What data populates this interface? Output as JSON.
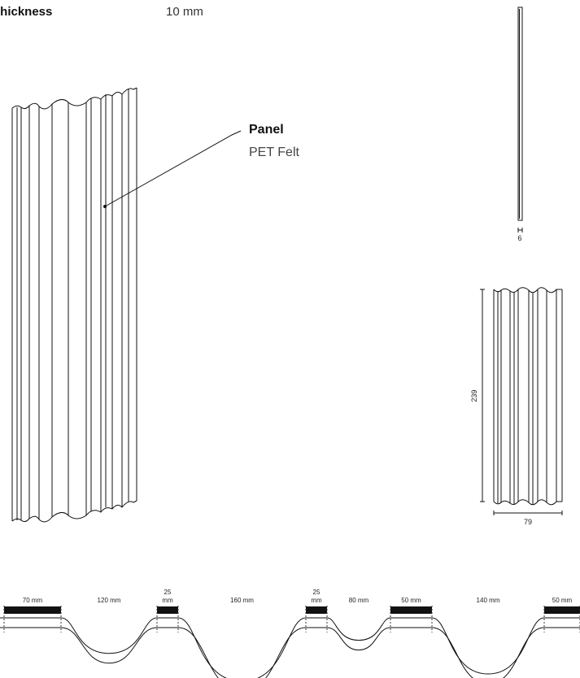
{
  "spec": {
    "label": "t thickness",
    "value": "10 mm"
  },
  "callout": {
    "title": "Panel",
    "subtitle": "PET Felt"
  },
  "dimensions": {
    "side_thickness": "6",
    "front_height": "239",
    "front_width": "79"
  },
  "profile_segments": [
    {
      "label": "70 mm",
      "kind": "flat"
    },
    {
      "label": "120 mm",
      "kind": "curve"
    },
    {
      "label": "25",
      "label2": "mm",
      "kind": "flat"
    },
    {
      "label": "160 mm",
      "kind": "curve"
    },
    {
      "label": "25",
      "label2": "mm",
      "kind": "flat"
    },
    {
      "label": "80 mm",
      "kind": "curve"
    },
    {
      "label": "50 mm",
      "kind": "flat"
    },
    {
      "label": "140 mm",
      "kind": "curve"
    },
    {
      "label": "50 mm",
      "kind": "flat"
    }
  ]
}
